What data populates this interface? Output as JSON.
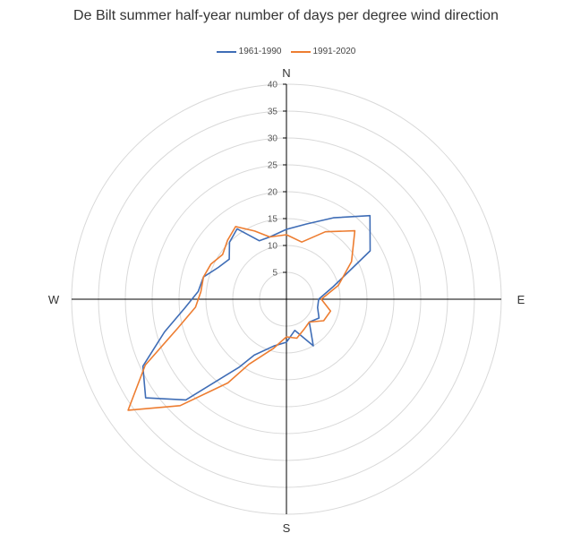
{
  "chart_data": {
    "type": "polar-line",
    "title": "De Bilt summer half-year number of days per degree wind direction",
    "radial_ticks": [
      5,
      10,
      15,
      20,
      25,
      30,
      35,
      40
    ],
    "radial_max": 40,
    "directions": [
      "N",
      "E",
      "S",
      "W"
    ],
    "legend_position": "top",
    "series": [
      {
        "name": "1961-1990",
        "color": "#3f6db6",
        "angles": [
          0,
          15,
          30,
          45,
          60,
          75,
          90,
          105,
          120,
          135,
          150,
          165,
          180,
          195,
          210,
          215,
          225,
          235,
          245,
          255,
          265,
          275,
          285,
          295,
          305,
          315,
          325,
          335,
          345
        ],
        "values": [
          13,
          14.5,
          17.5,
          22,
          18,
          9,
          6,
          6,
          7,
          6,
          10,
          6,
          8,
          9,
          12,
          15.5,
          26.5,
          32,
          29.5,
          23.5,
          19,
          16.5,
          16,
          14,
          13,
          15,
          16,
          12,
          12
        ]
      },
      {
        "name": "1991-2020",
        "color": "#ed7d31",
        "angles": [
          0,
          15,
          30,
          45,
          60,
          75,
          90,
          105,
          120,
          135,
          150,
          165,
          180,
          195,
          210,
          215,
          225,
          235,
          245,
          255,
          265,
          275,
          285,
          295,
          305,
          315,
          325,
          335,
          345
        ],
        "values": [
          12,
          11,
          14.5,
          18,
          14,
          10,
          6.5,
          8.5,
          8,
          6,
          6.5,
          7.5,
          7,
          9.5,
          14,
          19,
          28,
          36,
          29,
          21,
          17,
          16,
          16,
          15.5,
          14.5,
          15.5,
          16.5,
          14,
          12
        ]
      }
    ]
  }
}
